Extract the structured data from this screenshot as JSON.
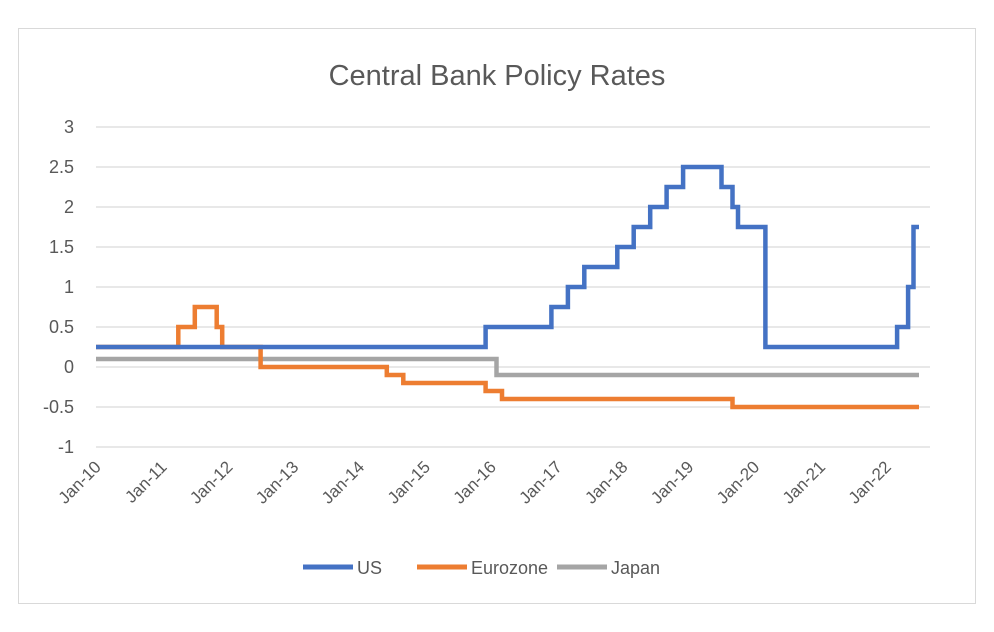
{
  "chart_data": {
    "type": "line",
    "title": "Central Bank Policy Rates",
    "xlabel": "",
    "ylabel": "",
    "x_ticks": [
      "Jan-10",
      "Jan-11",
      "Jan-12",
      "Jan-13",
      "Jan-14",
      "Jan-15",
      "Jan-16",
      "Jan-17",
      "Jan-18",
      "Jan-19",
      "Jan-20",
      "Jan-21",
      "Jan-22"
    ],
    "y_ticks": [
      "3",
      "2.5",
      "2",
      "1.5",
      "1",
      "0.5",
      "0",
      "-0.5",
      "-1"
    ],
    "ylim": [
      -1,
      3
    ],
    "xlim": [
      "2010-01",
      "2022-09"
    ],
    "grid": true,
    "legend_position": "bottom",
    "series": [
      {
        "name": "US",
        "color": "#4472c4",
        "points": [
          [
            "2010-01",
            0.25
          ],
          [
            "2015-12",
            0.25
          ],
          [
            "2015-12",
            0.5
          ],
          [
            "2016-12",
            0.5
          ],
          [
            "2016-12",
            0.75
          ],
          [
            "2017-03",
            0.75
          ],
          [
            "2017-03",
            1.0
          ],
          [
            "2017-06",
            1.0
          ],
          [
            "2017-06",
            1.25
          ],
          [
            "2017-12",
            1.25
          ],
          [
            "2017-12",
            1.5
          ],
          [
            "2018-03",
            1.5
          ],
          [
            "2018-03",
            1.75
          ],
          [
            "2018-06",
            1.75
          ],
          [
            "2018-06",
            2.0
          ],
          [
            "2018-09",
            2.0
          ],
          [
            "2018-09",
            2.25
          ],
          [
            "2018-12",
            2.25
          ],
          [
            "2018-12",
            2.5
          ],
          [
            "2019-07",
            2.5
          ],
          [
            "2019-07",
            2.25
          ],
          [
            "2019-09",
            2.25
          ],
          [
            "2019-09",
            2.0
          ],
          [
            "2019-10",
            2.0
          ],
          [
            "2019-10",
            1.75
          ],
          [
            "2020-03",
            1.75
          ],
          [
            "2020-03",
            1.25
          ],
          [
            "2020-03",
            1.25
          ],
          [
            "2020-03",
            0.25
          ],
          [
            "2022-03",
            0.25
          ],
          [
            "2022-03",
            0.5
          ],
          [
            "2022-05",
            0.5
          ],
          [
            "2022-05",
            1.0
          ],
          [
            "2022-06",
            1.0
          ],
          [
            "2022-06",
            1.75
          ],
          [
            "2022-07",
            1.75
          ]
        ]
      },
      {
        "name": "Eurozone",
        "color": "#ed7d31",
        "points": [
          [
            "2010-01",
            0.25
          ],
          [
            "2011-04",
            0.25
          ],
          [
            "2011-04",
            0.5
          ],
          [
            "2011-07",
            0.5
          ],
          [
            "2011-07",
            0.75
          ],
          [
            "2011-11",
            0.75
          ],
          [
            "2011-11",
            0.5
          ],
          [
            "2011-12",
            0.5
          ],
          [
            "2011-12",
            0.25
          ],
          [
            "2012-07",
            0.25
          ],
          [
            "2012-07",
            0.0
          ],
          [
            "2014-06",
            0.0
          ],
          [
            "2014-06",
            -0.1
          ],
          [
            "2014-09",
            -0.1
          ],
          [
            "2014-09",
            -0.2
          ],
          [
            "2015-12",
            -0.2
          ],
          [
            "2015-12",
            -0.3
          ],
          [
            "2016-03",
            -0.3
          ],
          [
            "2016-03",
            -0.4
          ],
          [
            "2019-09",
            -0.4
          ],
          [
            "2019-09",
            -0.5
          ],
          [
            "2022-07",
            -0.5
          ]
        ]
      },
      {
        "name": "Japan",
        "color": "#a5a5a5",
        "points": [
          [
            "2010-01",
            0.1
          ],
          [
            "2016-02",
            0.1
          ],
          [
            "2016-02",
            -0.1
          ],
          [
            "2022-07",
            -0.1
          ]
        ]
      }
    ]
  }
}
